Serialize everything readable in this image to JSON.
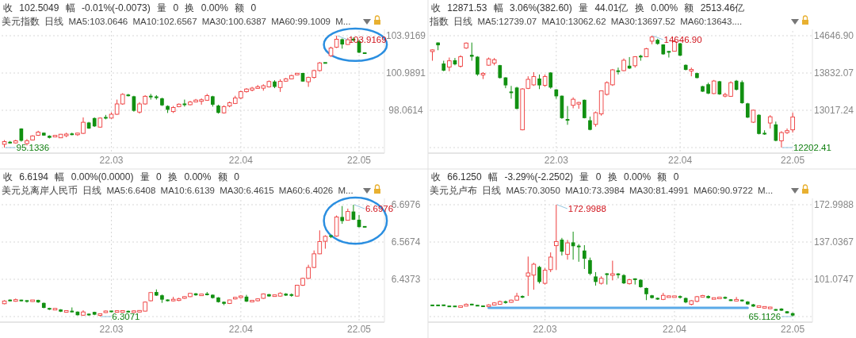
{
  "chart_data": [
    {
      "type": "candlestick",
      "title": "美元指数 日线 MA5:103.0646 MA10:102.6567 MA30:100.6387 MA60:99.1009 M...",
      "subtitle": "收 102.5049 幅 -0.01%(-0.0073) 量 0 换 0.00% 额 0",
      "categories": [
        null,
        null,
        null,
        null,
        null,
        null,
        null,
        null,
        null,
        null,
        null,
        null,
        null,
        null,
        null,
        null,
        null,
        null,
        null,
        "22.03",
        null,
        null,
        null,
        null,
        null,
        null,
        null,
        null,
        null,
        null,
        null,
        null,
        null,
        null,
        null,
        null,
        null,
        null,
        null,
        null,
        null,
        null,
        "22.04",
        null,
        null,
        null,
        null,
        null,
        null,
        null,
        null,
        null,
        null,
        null,
        null,
        null,
        null,
        null,
        null,
        null,
        null,
        null,
        null,
        "22.05",
        null
      ],
      "ohlc": [
        [
          95.39,
          95.72,
          95.1336,
          95.6
        ],
        [
          95.55,
          95.65,
          95.45,
          95.5
        ],
        [
          95.5,
          95.75,
          95.45,
          95.66
        ],
        [
          96.63,
          96.65,
          95.6,
          95.67
        ],
        [
          95.45,
          95.8,
          95.3,
          95.67
        ],
        [
          95.73,
          96.1,
          95.7,
          96.05
        ],
        [
          96.1,
          96.45,
          96.05,
          96.35
        ],
        [
          96.3,
          96.32,
          96.06,
          96.08
        ],
        [
          96.06,
          96.1,
          95.85,
          95.9
        ],
        [
          96.0,
          96.1,
          95.95,
          96.06
        ],
        [
          95.9,
          96.2,
          95.88,
          96.18
        ],
        [
          96.1,
          96.3,
          95.95,
          96.16
        ],
        [
          96.2,
          96.3,
          96.1,
          96.16
        ],
        [
          96.16,
          96.3,
          96.05,
          96.25
        ],
        [
          96.25,
          97.5,
          96.2,
          97.12
        ],
        [
          97.1,
          97.15,
          96.6,
          96.63
        ],
        [
          97.45,
          97.5,
          96.75,
          96.8
        ],
        [
          96.74,
          97.5,
          96.7,
          97.45
        ],
        [
          97.5,
          97.7,
          97.35,
          97.45
        ],
        [
          97.45,
          97.9,
          97.4,
          97.75
        ],
        [
          97.75,
          98.9,
          97.7,
          98.56
        ],
        [
          98.56,
          99.4,
          98.5,
          99.31
        ],
        [
          99.27,
          99.35,
          99.15,
          99.2
        ],
        [
          99.16,
          99.2,
          97.95,
          98.02
        ],
        [
          97.92,
          98.7,
          97.8,
          98.56
        ],
        [
          98.56,
          99.25,
          98.5,
          99.16
        ],
        [
          99.16,
          99.35,
          98.9,
          99.12
        ],
        [
          99.12,
          99.25,
          98.9,
          99.05
        ],
        [
          99.0,
          99.05,
          98.4,
          98.45
        ],
        [
          98.4,
          98.45,
          97.85,
          98.1
        ],
        [
          97.96,
          98.4,
          97.85,
          98.28
        ],
        [
          98.35,
          98.6,
          98.3,
          98.54
        ],
        [
          98.56,
          98.9,
          98.35,
          98.5
        ],
        [
          98.5,
          98.8,
          98.45,
          98.71
        ],
        [
          98.72,
          98.95,
          98.7,
          98.86
        ],
        [
          98.8,
          99.0,
          98.5,
          98.85
        ],
        [
          98.85,
          99.35,
          98.8,
          99.21
        ],
        [
          99.16,
          99.2,
          98.35,
          98.5
        ],
        [
          98.43,
          98.5,
          97.8,
          97.86
        ],
        [
          97.86,
          98.45,
          97.8,
          98.35
        ],
        [
          98.4,
          98.75,
          98.3,
          98.65
        ],
        [
          98.6,
          99.2,
          98.55,
          99.03
        ],
        [
          99.03,
          99.6,
          98.95,
          99.52
        ],
        [
          99.52,
          99.8,
          99.45,
          99.73
        ],
        [
          99.65,
          99.9,
          99.55,
          99.8
        ],
        [
          99.8,
          100.05,
          99.75,
          99.89
        ],
        [
          99.8,
          100.1,
          99.6,
          99.99
        ],
        [
          99.9,
          100.4,
          99.85,
          100.32
        ],
        [
          100.32,
          100.42,
          99.8,
          99.9
        ],
        [
          99.85,
          100.5,
          99.5,
          100.34
        ],
        [
          100.35,
          100.6,
          100.3,
          100.53
        ],
        [
          100.53,
          100.85,
          100.5,
          100.79
        ],
        [
          100.85,
          101.0,
          100.8,
          100.96
        ],
        [
          100.99,
          101.0,
          100.3,
          100.32
        ],
        [
          100.3,
          100.7,
          99.9,
          100.64
        ],
        [
          100.64,
          101.25,
          100.55,
          101.18
        ],
        [
          101.18,
          101.85,
          101.1,
          101.78
        ],
        [
          101.8,
          101.8,
          101.75,
          101.76
        ],
        [
          102.35,
          103.05,
          102.25,
          102.95
        ],
        [
          103.02,
          103.9169,
          102.95,
          103.64
        ],
        [
          103.64,
          103.7,
          102.9,
          103.23
        ],
        [
          103.23,
          103.75,
          103.2,
          103.6
        ],
        [
          103.64,
          103.8,
          103.45,
          103.58
        ],
        [
          103.49,
          103.6,
          102.55,
          102.59
        ],
        [
          102.59,
          102.6,
          102.5,
          102.5049
        ]
      ],
      "ylim": [
        95.1336,
        103.9169
      ],
      "yticks": [
        {
          "value": 95.1336,
          "label": null
        },
        98.0614,
        100.9891,
        103.9169
      ],
      "grid": true,
      "annotations": [
        "103.9169",
        "95.1336"
      ]
    },
    {
      "type": "candlestick",
      "title": "指数 日线 MA5:12739.07 MA10:13062.62 MA30:13697.52 MA60:13643....",
      "subtitle": "收 12871.53 幅 3.06%(382.60) 量 44.01亿 换 0.00% 额 2513.46亿",
      "categories": [
        null,
        null,
        null,
        null,
        null,
        null,
        null,
        null,
        null,
        null,
        null,
        null,
        null,
        null,
        null,
        null,
        null,
        null,
        null,
        null,
        null,
        null,
        "22.03",
        null,
        null,
        null,
        null,
        null,
        null,
        null,
        null,
        null,
        null,
        null,
        null,
        null,
        null,
        null,
        null,
        null,
        null,
        null,
        null,
        null,
        "22.04",
        null,
        null,
        null,
        null,
        null,
        null,
        null,
        null,
        null,
        null,
        null,
        null,
        null,
        null,
        null,
        null,
        null,
        null,
        null,
        "22.05"
      ],
      "ohlc": [
        [
          14301,
          14350,
          14100,
          14337
        ],
        [
          14498,
          14500,
          14330,
          14438
        ],
        [
          14039,
          14100,
          13870,
          13884
        ],
        [
          13961,
          14170,
          13870,
          14098
        ],
        [
          14110,
          14160,
          14000,
          14021
        ],
        [
          13979,
          14220,
          13950,
          14188
        ],
        [
          14378,
          14500,
          14360,
          14486
        ],
        [
          14229,
          14497,
          14100,
          14188
        ],
        [
          14188,
          14200,
          13770,
          13800
        ],
        [
          13800,
          13850,
          13700,
          13812
        ],
        [
          14003,
          14170,
          13990,
          14140
        ],
        [
          14050,
          14160,
          14000,
          14122
        ],
        [
          14003,
          14010,
          13710,
          13723
        ],
        [
          13735,
          13740,
          13500,
          13562
        ],
        [
          13425,
          13550,
          13270,
          13395
        ],
        [
          13514,
          13530,
          13040,
          13049
        ],
        [
          12590,
          13500,
          12580,
          13484
        ],
        [
          13497,
          13760,
          13480,
          13693
        ],
        [
          13573,
          13850,
          13550,
          13753
        ],
        [
          13711,
          13800,
          13480,
          13562
        ],
        [
          13562,
          13800,
          13530,
          13753
        ],
        [
          13842,
          13850,
          13490,
          13514
        ],
        [
          13472,
          13480,
          13270,
          13323
        ],
        [
          13335,
          13340,
          12830,
          12846
        ],
        [
          12817,
          13110,
          12700,
          12800
        ],
        [
          13126,
          13300,
          13060,
          13258
        ],
        [
          13156,
          13200,
          13050,
          13186
        ],
        [
          13246,
          13250,
          12840,
          12846
        ],
        [
          12799,
          12880,
          12580,
          12590
        ],
        [
          12709,
          12990,
          12660,
          12965
        ],
        [
          12938,
          13450,
          12900,
          13442
        ],
        [
          13365,
          13650,
          13340,
          13621
        ],
        [
          13574,
          13920,
          13550,
          13901
        ],
        [
          13883,
          13950,
          13800,
          13860
        ],
        [
          13884,
          14150,
          13870,
          14110
        ],
        [
          13991,
          14180,
          13920,
          13931
        ],
        [
          13991,
          14200,
          13950,
          14188
        ],
        [
          14200,
          14230,
          14100,
          14182
        ],
        [
          14188,
          14380,
          14180,
          14361
        ],
        [
          14527,
          14646.9,
          14460,
          14617
        ],
        [
          14557,
          14580,
          14450,
          14468
        ],
        [
          14456,
          14460,
          14230,
          14241
        ],
        [
          14301,
          14310,
          14170,
          14289
        ],
        [
          14307,
          14550,
          14300,
          14516
        ],
        [
          14480,
          14490,
          14200,
          14212
        ],
        [
          14009,
          14020,
          13890,
          13901
        ],
        [
          13884,
          13950,
          13760,
          13901
        ],
        [
          13830,
          13840,
          13715,
          13723
        ],
        [
          13544,
          13550,
          13420,
          13425
        ],
        [
          13586,
          13620,
          13370,
          13383
        ],
        [
          13383,
          13680,
          13370,
          13657
        ],
        [
          13651,
          13660,
          13355,
          13365
        ],
        [
          13335,
          13400,
          13300,
          13353
        ],
        [
          13323,
          13650,
          13310,
          13621
        ],
        [
          13663,
          13680,
          13450,
          13466
        ],
        [
          13633,
          13670,
          13160,
          13174
        ],
        [
          13168,
          13180,
          12850,
          12858
        ],
        [
          12757,
          13030,
          12740,
          13019
        ],
        [
          12918,
          12930,
          12490,
          12501
        ],
        [
          12513,
          12580,
          12480,
          12501
        ],
        [
          12739,
          12910,
          12620,
          12876
        ],
        [
          12709,
          12770,
          12340,
          12351
        ],
        [
          12351,
          12560,
          12202.41,
          12530
        ],
        [
          12530,
          12620,
          12500,
          12572
        ],
        [
          12590,
          12970,
          12530,
          12871.53
        ]
      ],
      "ylim": [
        12202.41,
        14646.9
      ],
      "yticks": [
        {
          "value": 12202.41,
          "label": null
        },
        {
          "value": 13017.24,
          "label": "13017.24"
        },
        {
          "value": 13832.07,
          "label": "13832.07"
        },
        {
          "value": 14646.9,
          "label": "14646.90"
        }
      ],
      "grid": true,
      "annotations": [
        "14646.90",
        "12202.41"
      ]
    },
    {
      "type": "candlestick",
      "title": "美元兑离岸人民币 日线 MA5:6.6408 MA10:6.6139 MA30:6.4615 MA60:6.4026 M...",
      "subtitle": "收 6.6194 幅 0.00%(0.0000) 量 0 换 0.00% 额 0",
      "categories": [
        null,
        null,
        null,
        null,
        null,
        null,
        null,
        null,
        null,
        null,
        null,
        null,
        null,
        null,
        null,
        null,
        null,
        null,
        null,
        "22.03",
        null,
        null,
        null,
        null,
        null,
        null,
        null,
        null,
        null,
        null,
        null,
        null,
        null,
        null,
        null,
        null,
        null,
        null,
        null,
        null,
        null,
        null,
        "22.04",
        null,
        null,
        null,
        null,
        null,
        null,
        null,
        null,
        null,
        null,
        null,
        null,
        null,
        null,
        null,
        null,
        null,
        null,
        null,
        null,
        "22.05",
        null
      ],
      "ohlc": [
        [
          6.352,
          6.3643,
          6.35,
          6.3614
        ],
        [
          6.3643,
          6.367,
          6.36,
          6.3624
        ],
        [
          6.3605,
          6.37,
          6.359,
          6.3662
        ],
        [
          6.3643,
          6.366,
          6.36,
          6.3624
        ],
        [
          6.3624,
          6.364,
          6.356,
          6.3605
        ],
        [
          6.3605,
          6.365,
          6.359,
          6.3643
        ],
        [
          6.3652,
          6.366,
          6.355,
          6.3567
        ],
        [
          6.3548,
          6.356,
          6.336,
          6.3376
        ],
        [
          6.3357,
          6.338,
          6.33,
          6.3329
        ],
        [
          6.3319,
          6.336,
          6.33,
          6.3338
        ],
        [
          6.3319,
          6.333,
          6.323,
          6.3243
        ],
        [
          6.3243,
          6.328,
          6.323,
          6.3262
        ],
        [
          6.3262,
          6.339,
          6.322,
          6.3233
        ],
        [
          6.3243,
          6.325,
          6.311,
          6.3119
        ],
        [
          6.3119,
          6.329,
          6.31,
          6.3233
        ],
        [
          6.3167,
          6.318,
          6.31,
          6.3119
        ],
        [
          6.3233,
          6.324,
          6.312,
          6.3138
        ],
        [
          6.3119,
          6.318,
          6.3071,
          6.3167
        ],
        [
          6.3214,
          6.328,
          6.32,
          6.3262
        ],
        [
          6.3262,
          6.327,
          6.322,
          6.3243
        ],
        [
          6.3233,
          6.328,
          6.322,
          6.3262
        ],
        [
          6.3238,
          6.329,
          6.322,
          6.3262
        ],
        [
          6.3252,
          6.328,
          6.322,
          6.3233
        ],
        [
          6.3233,
          6.329,
          6.322,
          6.3252
        ],
        [
          6.3243,
          6.329,
          6.323,
          6.3271
        ],
        [
          6.3262,
          6.36,
          6.325,
          6.3576
        ],
        [
          6.3624,
          6.392,
          6.36,
          6.3909
        ],
        [
          6.3928,
          6.402,
          6.379,
          6.3805
        ],
        [
          6.3814,
          6.384,
          6.355,
          6.3662
        ],
        [
          6.3662,
          6.367,
          6.36,
          6.3614
        ],
        [
          6.3633,
          6.376,
          6.36,
          6.3662
        ],
        [
          6.3652,
          6.373,
          6.361,
          6.3671
        ],
        [
          6.3709,
          6.378,
          6.369,
          6.3767
        ],
        [
          6.3767,
          6.389,
          6.375,
          6.3881
        ],
        [
          6.3881,
          6.389,
          6.38,
          6.3814
        ],
        [
          6.3814,
          6.387,
          6.38,
          6.3843
        ],
        [
          6.3862,
          6.393,
          6.381,
          6.3833
        ],
        [
          6.3833,
          6.384,
          6.37,
          6.3719
        ],
        [
          6.3738,
          6.375,
          6.356,
          6.3576
        ],
        [
          6.3586,
          6.36,
          6.347,
          6.3519
        ],
        [
          6.3529,
          6.366,
          6.351,
          6.3652
        ],
        [
          6.369,
          6.376,
          6.367,
          6.3738
        ],
        [
          6.3738,
          6.381,
          6.37,
          6.3786
        ],
        [
          6.3767,
          6.383,
          6.358,
          6.3595
        ],
        [
          6.3595,
          6.364,
          6.358,
          6.3624
        ],
        [
          6.3624,
          6.371,
          6.36,
          6.369
        ],
        [
          6.3709,
          6.388,
          6.369,
          6.3862
        ],
        [
          6.3852,
          6.386,
          6.376,
          6.3776
        ],
        [
          6.3786,
          6.383,
          6.377,
          6.3814
        ],
        [
          6.3786,
          6.392,
          6.377,
          6.3881
        ],
        [
          6.3871,
          6.389,
          6.379,
          6.3805
        ],
        [
          6.3833,
          6.388,
          6.376,
          6.3814
        ],
        [
          6.3786,
          6.418,
          6.377,
          6.4167
        ],
        [
          6.4167,
          6.443,
          6.414,
          6.4405
        ],
        [
          6.4405,
          6.488,
          6.439,
          6.4786
        ],
        [
          6.4786,
          6.538,
          6.476,
          6.5262
        ],
        [
          6.5262,
          6.608,
          6.525,
          6.569
        ],
        [
          6.57,
          6.591,
          6.544,
          6.5871
        ],
        [
          6.589,
          6.591,
          6.581,
          6.5871
        ],
        [
          6.5881,
          6.66,
          6.586,
          6.6548
        ],
        [
          6.6548,
          6.693,
          6.631,
          6.6405
        ],
        [
          6.6433,
          6.684,
          6.642,
          6.6738
        ],
        [
          6.6738,
          6.6976,
          6.644,
          6.6452
        ],
        [
          6.6452,
          6.662,
          6.618,
          6.6195
        ],
        [
          6.6214,
          6.622,
          6.618,
          6.6194
        ]
      ],
      "ylim": [
        6.3071,
        6.6976
      ],
      "yticks": [
        {
          "value": 6.3071,
          "label": null
        },
        6.4373,
        6.5674,
        6.6976
      ],
      "grid": true,
      "annotations": [
        "6.6976",
        "6.3071"
      ]
    },
    {
      "type": "candlestick",
      "title": "美元兑卢布 日线 MA5:70.3050 MA10:73.3984 MA30:81.4991 MA60:90.9722 M...",
      "subtitle": "收 66.1250 幅 -3.29%(-2.2502) 量 0 换 0.00% 额 0",
      "categories": [
        null,
        null,
        null,
        null,
        null,
        null,
        null,
        null,
        null,
        null,
        null,
        null,
        null,
        null,
        null,
        null,
        null,
        null,
        null,
        null,
        "22.03",
        null,
        null,
        null,
        null,
        null,
        null,
        null,
        null,
        null,
        null,
        null,
        null,
        null,
        null,
        null,
        null,
        null,
        null,
        null,
        null,
        null,
        null,
        "22.04",
        null,
        null,
        null,
        null,
        null,
        null,
        null,
        null,
        null,
        null,
        null,
        null,
        null,
        null,
        null,
        null,
        null,
        null,
        null,
        null,
        "22.05"
      ],
      "ohlc": [
        [
          76.2,
          76.4,
          75.4,
          75.6
        ],
        [
          76.1,
          76.3,
          75.5,
          75.7
        ],
        [
          76.4,
          76.6,
          75.4,
          75.6
        ],
        [
          75.2,
          75.3,
          74.6,
          74.7
        ],
        [
          75.1,
          75.3,
          74.5,
          74.7
        ],
        [
          74.5,
          75.2,
          74.4,
          75.0
        ],
        [
          75.2,
          77.8,
          75.0,
          76.9
        ],
        [
          77.0,
          77.5,
          76.2,
          76.4
        ],
        [
          76.0,
          76.3,
          75.1,
          75.3
        ],
        [
          75.3,
          75.5,
          74.6,
          74.8
        ],
        [
          74.8,
          77.0,
          74.6,
          76.4
        ],
        [
          76.2,
          79.0,
          76.0,
          78.3
        ],
        [
          77.0,
          80.5,
          76.5,
          79.6
        ],
        [
          79.8,
          80.5,
          77.5,
          78.3
        ],
        [
          78.9,
          81.5,
          78.5,
          81.0
        ],
        [
          81.0,
          88.0,
          80.5,
          84.9
        ],
        [
          84.8,
          85.5,
          83.0,
          83.5
        ],
        [
          104.1,
          123.0,
          85.0,
          107.2
        ],
        [
          105.1,
          117.0,
          91.0,
          115.6
        ],
        [
          113.0,
          114.0,
          97.0,
          98.5
        ],
        [
          97.2,
          112.0,
          96.0,
          109.8
        ],
        [
          110.4,
          127.0,
          108.0,
          122.5
        ],
        [
          133.5,
          172.9988,
          110.0,
          137.5
        ],
        [
          139.3,
          141.0,
          124.0,
          127.7
        ],
        [
          125.1,
          139.0,
          120.0,
          136.2
        ],
        [
          136.7,
          147.0,
          120.0,
          133.0
        ],
        [
          133.0,
          135.0,
          118.0,
          132.5
        ],
        [
          128.8,
          134.0,
          111.0,
          120.9
        ],
        [
          119.6,
          122.0,
          105.0,
          106.4
        ],
        [
          103.8,
          108.0,
          95.0,
          98.5
        ],
        [
          97.2,
          104.0,
          96.0,
          102.0
        ],
        [
          106.4,
          107.0,
          96.0,
          105.6
        ],
        [
          105.1,
          119.0,
          100.0,
          106.2
        ],
        [
          106.1,
          107.0,
          102.0,
          105.6
        ],
        [
          105.1,
          106.0,
          96.5,
          97.2
        ],
        [
          96.8,
          101.5,
          96.0,
          100.6
        ],
        [
          101.4,
          102.0,
          96.0,
          100.9
        ],
        [
          100.6,
          101.0,
          93.0,
          93.5
        ],
        [
          92.7,
          93.0,
          81.0,
          86.7
        ],
        [
          85.6,
          86.0,
          82.5,
          83.0
        ],
        [
          83.0,
          83.5,
          81.2,
          81.7
        ],
        [
          81.7,
          88.0,
          81.0,
          85.6
        ],
        [
          84.0,
          85.5,
          83.5,
          84.6
        ],
        [
          84.0,
          85.0,
          83.6,
          84.6
        ],
        [
          84.3,
          85.5,
          82.5,
          83.8
        ],
        [
          83.0,
          83.5,
          78.0,
          78.8
        ],
        [
          77.0,
          81.0,
          76.0,
          80.4
        ],
        [
          79.8,
          85.0,
          79.0,
          84.3
        ],
        [
          84.3,
          86.0,
          83.8,
          85.1
        ],
        [
          84.9,
          85.5,
          82.5,
          83.0
        ],
        [
          82.3,
          83.5,
          82.0,
          82.8
        ],
        [
          82.8,
          84.0,
          82.5,
          83.3
        ],
        [
          84.0,
          84.5,
          82.0,
          82.5
        ],
        [
          81.2,
          82.0,
          80.2,
          80.6
        ],
        [
          80.6,
          84.0,
          80.0,
          81.2
        ],
        [
          81.2,
          81.5,
          79.5,
          80.1
        ],
        [
          79.6,
          80.0,
          76.5,
          76.9
        ],
        [
          76.9,
          77.3,
          74.5,
          74.8
        ],
        [
          74.5,
          75.5,
          73.5,
          75.0
        ],
        [
          73.8,
          74.8,
          73.0,
          74.3
        ],
        [
          73.0,
          74.5,
          72.5,
          74.0
        ],
        [
          72.0,
          72.4,
          70.8,
          71.1
        ],
        [
          72.8,
          73.2,
          70.5,
          70.8
        ],
        [
          70.2,
          70.5,
          68.0,
          68.3
        ],
        [
          68.4,
          69.0,
          65.1126,
          66.125
        ]
      ],
      "series": [
        {
          "type": "line",
          "color": "#5aaae8",
          "values": [
            null,
            null,
            null,
            null,
            null,
            null,
            null,
            null,
            null,
            null,
            73.6,
            73.6,
            73.6,
            73.6,
            73.6,
            73.6,
            73.6,
            73.6,
            73.6,
            73.6,
            73.6,
            73.6,
            73.6,
            73.6,
            73.6,
            73.6,
            73.6,
            73.6,
            73.6,
            73.6,
            73.6,
            73.6,
            73.6,
            73.6,
            73.6,
            73.6,
            73.6,
            73.6,
            73.6,
            73.6,
            73.6,
            73.6,
            73.6,
            73.6,
            73.6,
            73.6,
            73.6,
            73.6,
            73.6,
            73.6,
            73.6,
            73.6,
            73.6,
            73.6,
            73.6,
            73.6,
            73.6,
            null,
            null,
            null,
            null,
            null,
            null,
            null,
            null
          ]
        }
      ],
      "ylim": [
        65.1126,
        172.9988
      ],
      "yticks": [
        {
          "value": 65.1126,
          "label": null
        },
        101.0747,
        137.0367,
        172.9988
      ],
      "grid": true,
      "annotations": [
        "172.9988",
        "65.1126"
      ]
    }
  ]
}
